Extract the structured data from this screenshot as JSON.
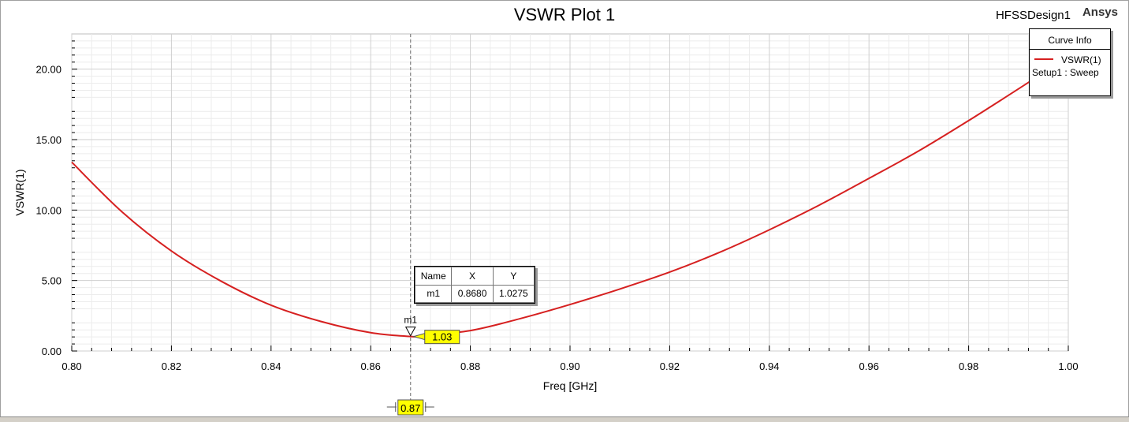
{
  "plot": {
    "title": "VSWR Plot 1",
    "design": "HFSSDesign1",
    "brand": "Ansys"
  },
  "legend": {
    "title": "Curve Info",
    "series_name": "VSWR(1)",
    "setup": "Setup1 : Sweep",
    "color": "#d62020"
  },
  "marker": {
    "name": "m1",
    "headers": [
      "Name",
      "X",
      "Y"
    ],
    "x_value": "0.8680",
    "y_value": "1.0275",
    "y_label": "1.03",
    "x_label": "0.87",
    "x": 0.868,
    "y": 1.0275
  },
  "chart_data": {
    "type": "line",
    "title": "VSWR Plot 1",
    "xlabel": "Freq [GHz]",
    "ylabel": "VSWR(1)",
    "xlim": [
      0.8,
      1.0
    ],
    "ylim": [
      0,
      22.5
    ],
    "xticks": [
      "0.80",
      "0.82",
      "0.84",
      "0.86",
      "0.88",
      "0.90",
      "0.92",
      "0.94",
      "0.96",
      "0.98",
      "1.00"
    ],
    "yticks": [
      "0.00",
      "5.00",
      "10.00",
      "15.00",
      "20.00"
    ],
    "grid": true,
    "legend_position": "top-right",
    "series": [
      {
        "name": "VSWR(1)",
        "color": "#d62020",
        "x": [
          0.8,
          0.81,
          0.82,
          0.83,
          0.84,
          0.85,
          0.86,
          0.868,
          0.87,
          0.88,
          0.89,
          0.9,
          0.91,
          0.92,
          0.93,
          0.94,
          0.95,
          0.96,
          0.97,
          0.98,
          0.99,
          0.9935
        ],
        "y": [
          13.4,
          9.9,
          7.1,
          4.95,
          3.25,
          2.1,
          1.3,
          1.03,
          1.08,
          1.45,
          2.3,
          3.3,
          4.4,
          5.6,
          7.0,
          8.6,
          10.35,
          12.25,
          14.2,
          16.35,
          18.6,
          19.4
        ]
      }
    ]
  }
}
